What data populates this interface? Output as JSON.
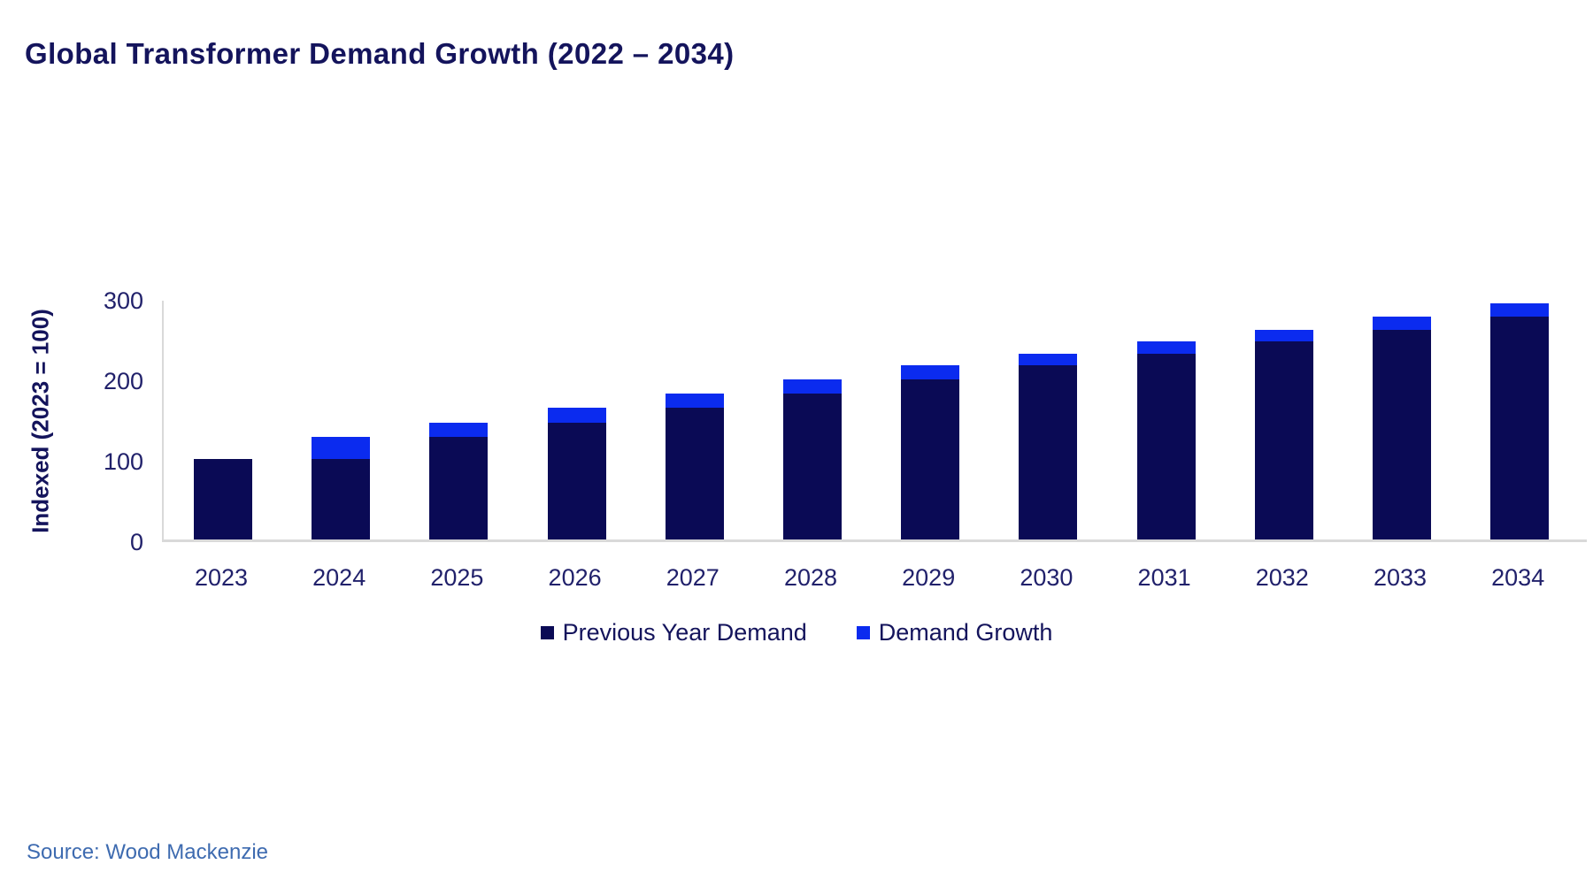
{
  "page": {
    "title": "Global Transformer Demand Growth (2022 – 2034)",
    "source": "Source: Wood Mackenzie"
  },
  "chart_data": {
    "type": "bar",
    "stacked": true,
    "title": "Global Transformer Demand Growth (2022 – 2034)",
    "ylabel": "Indexed (2023 = 100)",
    "xlabel": "",
    "categories": [
      "2023",
      "2024",
      "2025",
      "2026",
      "2027",
      "2028",
      "2029",
      "2030",
      "2031",
      "2032",
      "2033",
      "2034"
    ],
    "series": [
      {
        "name": "Previous Year Demand",
        "color": "#0A0A55",
        "values": [
          100,
          100,
          127,
          145,
          164,
          181,
          199,
          216,
          231,
          246,
          261,
          277
        ]
      },
      {
        "name": "Demand Growth",
        "color": "#0B2BEF",
        "values": [
          0,
          27,
          18,
          19,
          17,
          18,
          17,
          15,
          15,
          15,
          16,
          16
        ]
      }
    ],
    "totals": [
      100,
      127,
      145,
      164,
      181,
      199,
      216,
      231,
      246,
      261,
      277,
      293
    ],
    "yticks": [
      0,
      100,
      200,
      300
    ],
    "ylim": [
      0,
      300
    ],
    "grid": false,
    "legend_position": "bottom"
  },
  "colors": {
    "title_text": "#14145C",
    "tick_text": "#21216B",
    "axis_line": "#D9D9D9",
    "bar_dark_navy": "#0A0A55",
    "bar_bright_blue": "#0B2BEF",
    "source_text": "#3E6BB0",
    "background": "#FFFFFF"
  }
}
